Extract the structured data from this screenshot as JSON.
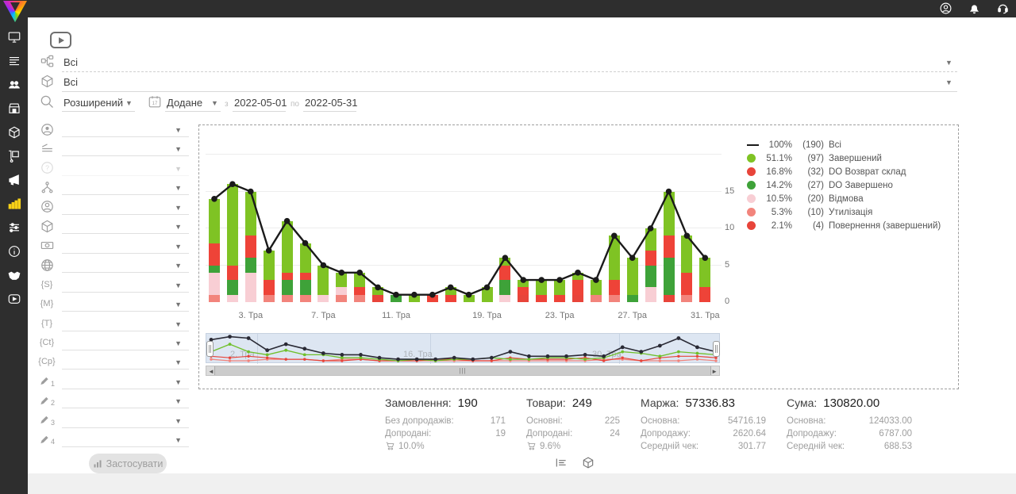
{
  "topbar": {
    "icons": [
      {
        "name": "user-account-icon"
      },
      {
        "name": "notifications-bell-icon"
      },
      {
        "name": "support-headset-icon"
      }
    ]
  },
  "sidebar": {
    "items": [
      {
        "name": "dashboard-monitor",
        "active": false
      },
      {
        "name": "orders-list",
        "active": false
      },
      {
        "name": "clients-users",
        "active": false
      },
      {
        "name": "store",
        "active": false
      },
      {
        "name": "products-box",
        "active": false
      },
      {
        "name": "supply-dolly",
        "active": false
      },
      {
        "name": "marketing-megaphone",
        "active": false
      },
      {
        "name": "analytics-chart",
        "active": true
      },
      {
        "name": "settings-sliders",
        "active": false
      },
      {
        "name": "info",
        "active": false
      },
      {
        "name": "partners-handshake",
        "active": false
      },
      {
        "name": "video-tutorials-play",
        "active": false
      }
    ],
    "active_color": "#f7d117"
  },
  "filters": {
    "row_statuses": {
      "icon": "sitemap",
      "value": "Всі"
    },
    "row_products": {
      "icon": "package",
      "value": "Всі"
    },
    "search_row": {
      "mode_value": "Розширений",
      "date_field_value": "Додане",
      "from_label": "з",
      "date_from": "2022-05-01",
      "to_label": "по",
      "date_to": "2022-05-31"
    },
    "left_rows": [
      {
        "icon": "globe-person",
        "value": "",
        "disabled": false
      },
      {
        "icon": "lines",
        "value": "",
        "disabled": false
      },
      {
        "icon": "help",
        "value": "",
        "disabled": true
      },
      {
        "icon": "hierarchy",
        "value": "",
        "disabled": false
      },
      {
        "icon": "user-circle",
        "value": "",
        "disabled": false
      },
      {
        "icon": "package",
        "value": "",
        "disabled": false
      },
      {
        "icon": "money",
        "value": "",
        "disabled": false
      },
      {
        "icon": "globe",
        "value": "",
        "disabled": false
      },
      {
        "icon": "text",
        "text": "{S}",
        "value": "",
        "disabled": false
      },
      {
        "icon": "text",
        "text": "{M}",
        "value": "",
        "disabled": false
      },
      {
        "icon": "text",
        "text": "{T}",
        "value": "",
        "disabled": false
      },
      {
        "icon": "text",
        "text": "{Ct}",
        "value": "",
        "disabled": false
      },
      {
        "icon": "text",
        "text": "{Cp}",
        "value": "",
        "disabled": false
      },
      {
        "icon": "pencil",
        "num": "1",
        "value": "",
        "disabled": false
      },
      {
        "icon": "pencil",
        "num": "2",
        "value": "",
        "disabled": false
      },
      {
        "icon": "pencil",
        "num": "3",
        "value": "",
        "disabled": false
      },
      {
        "icon": "pencil",
        "num": "4",
        "value": "",
        "disabled": false
      }
    ],
    "apply_label": "Застосувати"
  },
  "chart_data": {
    "type": "bar+line",
    "title": "",
    "ylim": [
      0,
      20
    ],
    "y_ticks": [
      0,
      5,
      10,
      15
    ],
    "grid_values": [
      5,
      10,
      15,
      20
    ],
    "x_tick_labels": [
      {
        "index": 2,
        "label": "3. Тра"
      },
      {
        "index": 6,
        "label": "7. Тра"
      },
      {
        "index": 10,
        "label": "11. Тра"
      },
      {
        "index": 15,
        "label": "19. Тра"
      },
      {
        "index": 19,
        "label": "23. Тра"
      },
      {
        "index": 23,
        "label": "27. Тра"
      },
      {
        "index": 27,
        "label": "31. Тра"
      }
    ],
    "line_series": {
      "name": "Всі",
      "color": "#1a1a1a",
      "values": [
        14,
        16,
        15,
        7,
        11,
        8,
        5,
        4,
        4,
        2,
        1,
        1,
        1,
        2,
        1,
        2,
        6,
        3,
        3,
        3,
        4,
        3,
        9,
        6,
        10,
        15,
        9,
        6
      ]
    },
    "series": [
      {
        "name": "Завершений",
        "color": "#7fc324",
        "values": [
          6,
          11,
          6,
          4,
          7,
          4,
          4,
          2,
          2,
          1,
          0,
          1,
          0,
          1,
          1,
          2,
          1,
          1,
          2,
          2,
          1,
          2,
          6,
          5,
          3,
          6,
          5,
          4
        ]
      },
      {
        "name": "DO Возврат склад",
        "color": "#ee4338",
        "values": [
          3,
          2,
          3,
          2,
          1,
          1,
          0,
          0,
          1,
          0,
          0,
          0,
          1,
          1,
          0,
          0,
          2,
          1,
          1,
          1,
          2,
          0,
          2,
          0,
          2,
          3,
          3,
          2
        ]
      },
      {
        "name": "DO Завершено",
        "color": "#3ea239",
        "values": [
          1,
          2,
          2,
          0,
          2,
          2,
          0,
          0,
          0,
          0,
          1,
          0,
          0,
          0,
          0,
          0,
          2,
          0,
          0,
          0,
          0,
          0,
          0,
          1,
          3,
          5,
          0,
          0
        ]
      },
      {
        "name": "Відмова",
        "color": "#f8ced4",
        "values": [
          3,
          1,
          4,
          0,
          0,
          0,
          1,
          1,
          0,
          0,
          0,
          0,
          0,
          0,
          0,
          0,
          1,
          0,
          0,
          0,
          0,
          0,
          0,
          0,
          2,
          0,
          0,
          0
        ]
      },
      {
        "name": "Утилізація",
        "color": "#f2847c",
        "values": [
          1,
          0,
          0,
          1,
          1,
          1,
          0,
          1,
          1,
          0,
          0,
          0,
          0,
          0,
          0,
          0,
          0,
          0,
          0,
          0,
          0,
          1,
          1,
          0,
          0,
          0,
          1,
          0
        ]
      },
      {
        "name": "Повернення (завершений)",
        "color": "#e8443a",
        "values": [
          0,
          0,
          0,
          0,
          0,
          0,
          0,
          0,
          0,
          1,
          0,
          0,
          0,
          0,
          0,
          0,
          0,
          1,
          0,
          0,
          1,
          0,
          0,
          0,
          0,
          1,
          0,
          0
        ]
      }
    ],
    "stack_order_bottom_up": [
      "Повернення (завершений)",
      "Утилізація",
      "Відмова",
      "DO Завершено",
      "DO Возврат склад",
      "Завершений"
    ],
    "legend": [
      {
        "swatch": "line",
        "color": "#1a1a1a",
        "pct": "100%",
        "count": "(190)",
        "label": "Всі"
      },
      {
        "swatch": "dot",
        "color": "#7fc324",
        "pct": "51.1%",
        "count": "(97)",
        "label": "Завершений"
      },
      {
        "swatch": "dot",
        "color": "#e8443a",
        "pct": "16.8%",
        "count": "(32)",
        "label": "DO Возврат склад"
      },
      {
        "swatch": "dot",
        "color": "#3ea239",
        "pct": "14.2%",
        "count": "(27)",
        "label": "DO Завершено"
      },
      {
        "swatch": "dot",
        "color": "#f8ced4",
        "pct": "10.5%",
        "count": "(20)",
        "label": "Відмова"
      },
      {
        "swatch": "dot",
        "color": "#f2847c",
        "pct": "5.3%",
        "count": "(10)",
        "label": "Утилізація"
      },
      {
        "swatch": "dot",
        "color": "#e8443a",
        "pct": "2.1%",
        "count": "(4)",
        "label": "Повернення (завершений)"
      }
    ],
    "navigator": {
      "faint_labels": [
        {
          "x": 30,
          "label": "2. Тра"
        },
        {
          "x": 248,
          "label": "16. Тра"
        },
        {
          "x": 486,
          "label": "30. Тра"
        }
      ]
    }
  },
  "summary": {
    "cards": [
      {
        "title": "Замовлення:",
        "value": "190",
        "rows": [
          {
            "label": "Без допродажів:",
            "value": "171"
          },
          {
            "label": "Допродані:",
            "value": "19"
          }
        ],
        "footer": {
          "icon": "cart",
          "value": "10.0%"
        }
      },
      {
        "title": "Товари:",
        "value": "249",
        "rows": [
          {
            "label": "Основні:",
            "value": "225"
          },
          {
            "label": "Допродані:",
            "value": "24"
          }
        ],
        "footer": {
          "icon": "cart",
          "value": "9.6%"
        }
      },
      {
        "title": "Маржа:",
        "value": "57336.83",
        "rows": [
          {
            "label": "Основна:",
            "value": "54716.19"
          },
          {
            "label": "Допродажу:",
            "value": "2620.64"
          },
          {
            "label": "Середній чек:",
            "value": "301.77"
          }
        ]
      },
      {
        "title": "Сума:",
        "value": "130820.00",
        "rows": [
          {
            "label": "Основна:",
            "value": "124033.00"
          },
          {
            "label": "Допродажу:",
            "value": "6787.00"
          },
          {
            "label": "Середній чек:",
            "value": "688.53"
          }
        ]
      }
    ]
  },
  "footer_toggles": [
    {
      "name": "list-report-icon"
    },
    {
      "name": "products-box-icon"
    }
  ]
}
